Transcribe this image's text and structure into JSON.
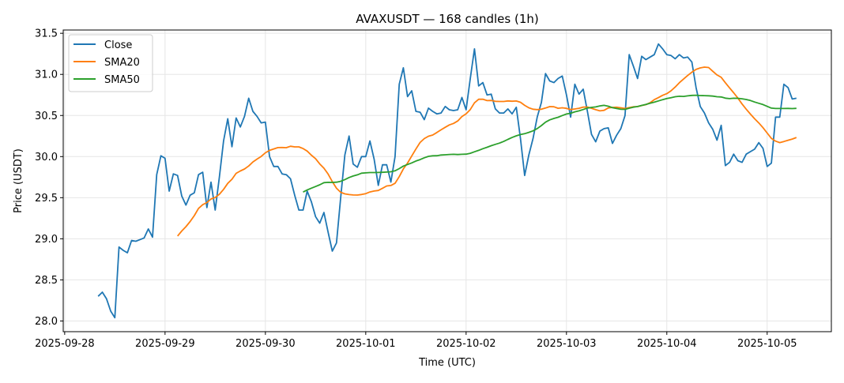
{
  "chart_data": {
    "type": "line",
    "title": "AVAXUSDT — 168 candles (1h)",
    "xlabel": "Time (UTC)",
    "ylabel": "Price (USDT)",
    "start_time": "2025-09-28T08:00:00Z",
    "interval_hours": 1,
    "xlim_hours_from_2025_09_28": [
      -0.35,
      183.35
    ],
    "ylim": [
      27.87,
      31.54
    ],
    "grid": true,
    "legend_position": "top-left",
    "x_ticks": [
      {
        "label": "2025-09-28",
        "hours": 0
      },
      {
        "label": "2025-09-29",
        "hours": 24
      },
      {
        "label": "2025-09-30",
        "hours": 48
      },
      {
        "label": "2025-10-01",
        "hours": 72
      },
      {
        "label": "2025-10-02",
        "hours": 96
      },
      {
        "label": "2025-10-03",
        "hours": 120
      },
      {
        "label": "2025-10-04",
        "hours": 144
      },
      {
        "label": "2025-10-05",
        "hours": 168
      }
    ],
    "y_ticks": [
      "28.0",
      "28.5",
      "29.0",
      "29.5",
      "30.0",
      "30.5",
      "31.0",
      "31.5"
    ],
    "series": [
      {
        "name": "Close",
        "color": "#1f77b4",
        "window": 1
      },
      {
        "name": "SMA20",
        "color": "#ff7f0e",
        "window": 20
      },
      {
        "name": "SMA50",
        "color": "#2ca02c",
        "window": 50
      }
    ],
    "close": [
      28.3,
      28.35,
      28.27,
      28.12,
      28.04,
      28.9,
      28.86,
      28.83,
      28.98,
      28.97,
      28.99,
      29.01,
      29.12,
      29.02,
      29.78,
      30.01,
      29.98,
      29.58,
      29.79,
      29.77,
      29.52,
      29.41,
      29.53,
      29.56,
      29.78,
      29.81,
      29.38,
      29.69,
      29.35,
      29.75,
      30.19,
      30.46,
      30.12,
      30.47,
      30.36,
      30.49,
      30.71,
      30.55,
      30.49,
      30.41,
      30.42,
      30.0,
      29.88,
      29.88,
      29.79,
      29.78,
      29.73,
      29.53,
      29.35,
      29.35,
      29.58,
      29.45,
      29.27,
      29.19,
      29.32,
      29.08,
      28.85,
      28.95,
      29.5,
      30.02,
      30.25,
      29.91,
      29.87,
      30.0,
      30.0,
      30.19,
      29.97,
      29.65,
      29.9,
      29.9,
      29.69,
      30.0,
      30.88,
      31.08,
      30.73,
      30.8,
      30.55,
      30.54,
      30.45,
      30.59,
      30.55,
      30.52,
      30.53,
      30.61,
      30.57,
      30.56,
      30.57,
      30.72,
      30.57,
      30.95,
      31.31,
      30.86,
      30.9,
      30.75,
      30.76,
      30.58,
      30.53,
      30.53,
      30.58,
      30.52,
      30.6,
      30.22,
      29.77,
      30.02,
      30.22,
      30.48,
      30.66,
      31.01,
      30.92,
      30.9,
      30.95,
      30.98,
      30.75,
      30.48,
      30.88,
      30.76,
      30.82,
      30.55,
      30.27,
      30.18,
      30.31,
      30.34,
      30.35,
      30.16,
      30.26,
      30.34,
      30.5,
      31.24,
      31.1,
      30.95,
      31.22,
      31.18,
      31.21,
      31.24,
      31.37,
      31.31,
      31.24,
      31.23,
      31.19,
      31.24,
      31.2,
      31.21,
      31.15,
      30.84,
      30.61,
      30.53,
      30.41,
      30.33,
      30.2,
      30.38,
      29.89,
      29.93,
      30.03,
      29.95,
      29.93,
      30.03,
      30.06,
      30.09,
      30.17,
      30.1,
      29.88,
      29.92,
      30.48,
      30.48,
      30.88,
      30.84,
      30.7,
      30.71
    ]
  }
}
